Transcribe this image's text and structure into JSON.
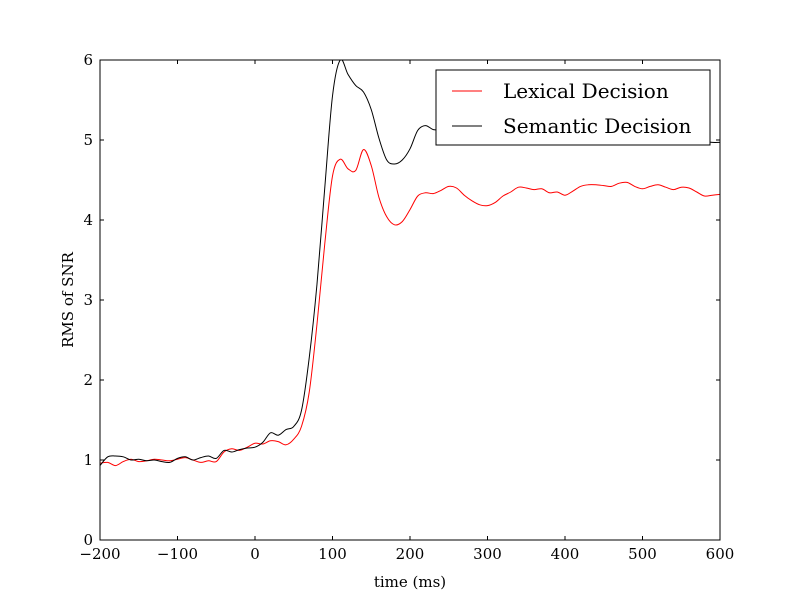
{
  "chart_data": {
    "type": "line",
    "xlabel": "time (ms)",
    "ylabel": "RMS of SNR",
    "xlim": [
      -200,
      600
    ],
    "ylim": [
      0,
      6
    ],
    "xticks": [
      -200,
      -100,
      0,
      100,
      200,
      300,
      400,
      500,
      600
    ],
    "xtick_labels": [
      "−200",
      "−100",
      "0",
      "100",
      "200",
      "300",
      "400",
      "500",
      "600"
    ],
    "yticks": [
      0,
      1,
      2,
      3,
      4,
      5,
      6
    ],
    "ytick_labels": [
      "0",
      "1",
      "2",
      "3",
      "4",
      "5",
      "6"
    ],
    "grid": false,
    "legend": {
      "placement": "top-right"
    },
    "series": [
      {
        "name": "Lexical Decision",
        "color": "#ff0000",
        "points": [
          [
            -200,
            0.96
          ],
          [
            -190,
            0.97
          ],
          [
            -180,
            0.93
          ],
          [
            -170,
            0.98
          ],
          [
            -160,
            1.01
          ],
          [
            -150,
            0.98
          ],
          [
            -140,
            0.99
          ],
          [
            -130,
            1.01
          ],
          [
            -120,
            1.0
          ],
          [
            -110,
            0.99
          ],
          [
            -100,
            1.01
          ],
          [
            -90,
            1.03
          ],
          [
            -80,
            1.0
          ],
          [
            -70,
            0.97
          ],
          [
            -60,
            0.99
          ],
          [
            -50,
            0.98
          ],
          [
            -40,
            1.1
          ],
          [
            -30,
            1.14
          ],
          [
            -20,
            1.12
          ],
          [
            -10,
            1.16
          ],
          [
            0,
            1.21
          ],
          [
            10,
            1.2
          ],
          [
            20,
            1.24
          ],
          [
            30,
            1.23
          ],
          [
            40,
            1.19
          ],
          [
            50,
            1.26
          ],
          [
            60,
            1.42
          ],
          [
            70,
            1.85
          ],
          [
            80,
            2.7
          ],
          [
            90,
            3.7
          ],
          [
            100,
            4.55
          ],
          [
            110,
            4.76
          ],
          [
            120,
            4.64
          ],
          [
            130,
            4.62
          ],
          [
            140,
            4.88
          ],
          [
            150,
            4.68
          ],
          [
            160,
            4.28
          ],
          [
            170,
            4.04
          ],
          [
            180,
            3.94
          ],
          [
            190,
            3.98
          ],
          [
            200,
            4.13
          ],
          [
            210,
            4.3
          ],
          [
            220,
            4.34
          ],
          [
            230,
            4.33
          ],
          [
            240,
            4.37
          ],
          [
            250,
            4.42
          ],
          [
            260,
            4.4
          ],
          [
            270,
            4.31
          ],
          [
            280,
            4.24
          ],
          [
            290,
            4.19
          ],
          [
            300,
            4.18
          ],
          [
            310,
            4.22
          ],
          [
            320,
            4.3
          ],
          [
            330,
            4.35
          ],
          [
            340,
            4.41
          ],
          [
            350,
            4.4
          ],
          [
            360,
            4.38
          ],
          [
            370,
            4.39
          ],
          [
            380,
            4.34
          ],
          [
            390,
            4.35
          ],
          [
            400,
            4.31
          ],
          [
            410,
            4.36
          ],
          [
            420,
            4.42
          ],
          [
            430,
            4.44
          ],
          [
            440,
            4.44
          ],
          [
            450,
            4.43
          ],
          [
            460,
            4.42
          ],
          [
            470,
            4.46
          ],
          [
            480,
            4.47
          ],
          [
            490,
            4.42
          ],
          [
            500,
            4.39
          ],
          [
            510,
            4.42
          ],
          [
            520,
            4.44
          ],
          [
            530,
            4.41
          ],
          [
            540,
            4.38
          ],
          [
            550,
            4.41
          ],
          [
            560,
            4.4
          ],
          [
            570,
            4.35
          ],
          [
            580,
            4.3
          ],
          [
            590,
            4.31
          ],
          [
            600,
            4.32
          ]
        ]
      },
      {
        "name": "Semantic Decision",
        "color": "#000000",
        "points": [
          [
            -200,
            0.93
          ],
          [
            -190,
            1.04
          ],
          [
            -180,
            1.05
          ],
          [
            -170,
            1.04
          ],
          [
            -160,
            1.0
          ],
          [
            -150,
            1.01
          ],
          [
            -140,
            0.99
          ],
          [
            -130,
            1.0
          ],
          [
            -120,
            0.98
          ],
          [
            -110,
            0.97
          ],
          [
            -100,
            1.02
          ],
          [
            -90,
            1.04
          ],
          [
            -80,
            1.0
          ],
          [
            -70,
            1.03
          ],
          [
            -60,
            1.05
          ],
          [
            -50,
            1.02
          ],
          [
            -40,
            1.12
          ],
          [
            -30,
            1.1
          ],
          [
            -20,
            1.13
          ],
          [
            -10,
            1.15
          ],
          [
            0,
            1.16
          ],
          [
            10,
            1.22
          ],
          [
            20,
            1.34
          ],
          [
            30,
            1.31
          ],
          [
            40,
            1.38
          ],
          [
            50,
            1.42
          ],
          [
            60,
            1.62
          ],
          [
            70,
            2.28
          ],
          [
            80,
            3.2
          ],
          [
            90,
            4.4
          ],
          [
            100,
            5.55
          ],
          [
            110,
            6.0
          ],
          [
            120,
            5.82
          ],
          [
            130,
            5.68
          ],
          [
            140,
            5.6
          ],
          [
            150,
            5.38
          ],
          [
            160,
            5.02
          ],
          [
            170,
            4.75
          ],
          [
            180,
            4.7
          ],
          [
            190,
            4.75
          ],
          [
            200,
            4.89
          ],
          [
            210,
            5.12
          ],
          [
            220,
            5.18
          ],
          [
            230,
            5.13
          ],
          [
            240,
            5.13
          ],
          [
            250,
            5.11
          ],
          [
            260,
            5.11
          ],
          [
            270,
            5.08
          ],
          [
            280,
            5.06
          ],
          [
            290,
            5.04
          ],
          [
            300,
            5.05
          ],
          [
            310,
            5.06
          ],
          [
            320,
            5.05
          ],
          [
            330,
            5.04
          ],
          [
            340,
            5.05
          ],
          [
            350,
            5.04
          ],
          [
            360,
            5.05
          ],
          [
            370,
            5.03
          ],
          [
            380,
            5.03
          ],
          [
            390,
            5.02
          ],
          [
            400,
            5.02
          ],
          [
            410,
            5.03
          ],
          [
            420,
            5.02
          ],
          [
            430,
            5.01
          ],
          [
            440,
            5.01
          ],
          [
            450,
            5.02
          ],
          [
            460,
            5.0
          ],
          [
            470,
            5.01
          ],
          [
            480,
            5.0
          ],
          [
            490,
            5.0
          ],
          [
            500,
            4.99
          ],
          [
            510,
            5.0
          ],
          [
            520,
            4.99
          ],
          [
            530,
            4.99
          ],
          [
            540,
            4.98
          ],
          [
            550,
            4.99
          ],
          [
            560,
            4.98
          ],
          [
            570,
            4.97
          ],
          [
            580,
            4.98
          ],
          [
            590,
            4.97
          ],
          [
            600,
            4.97
          ]
        ]
      }
    ]
  }
}
